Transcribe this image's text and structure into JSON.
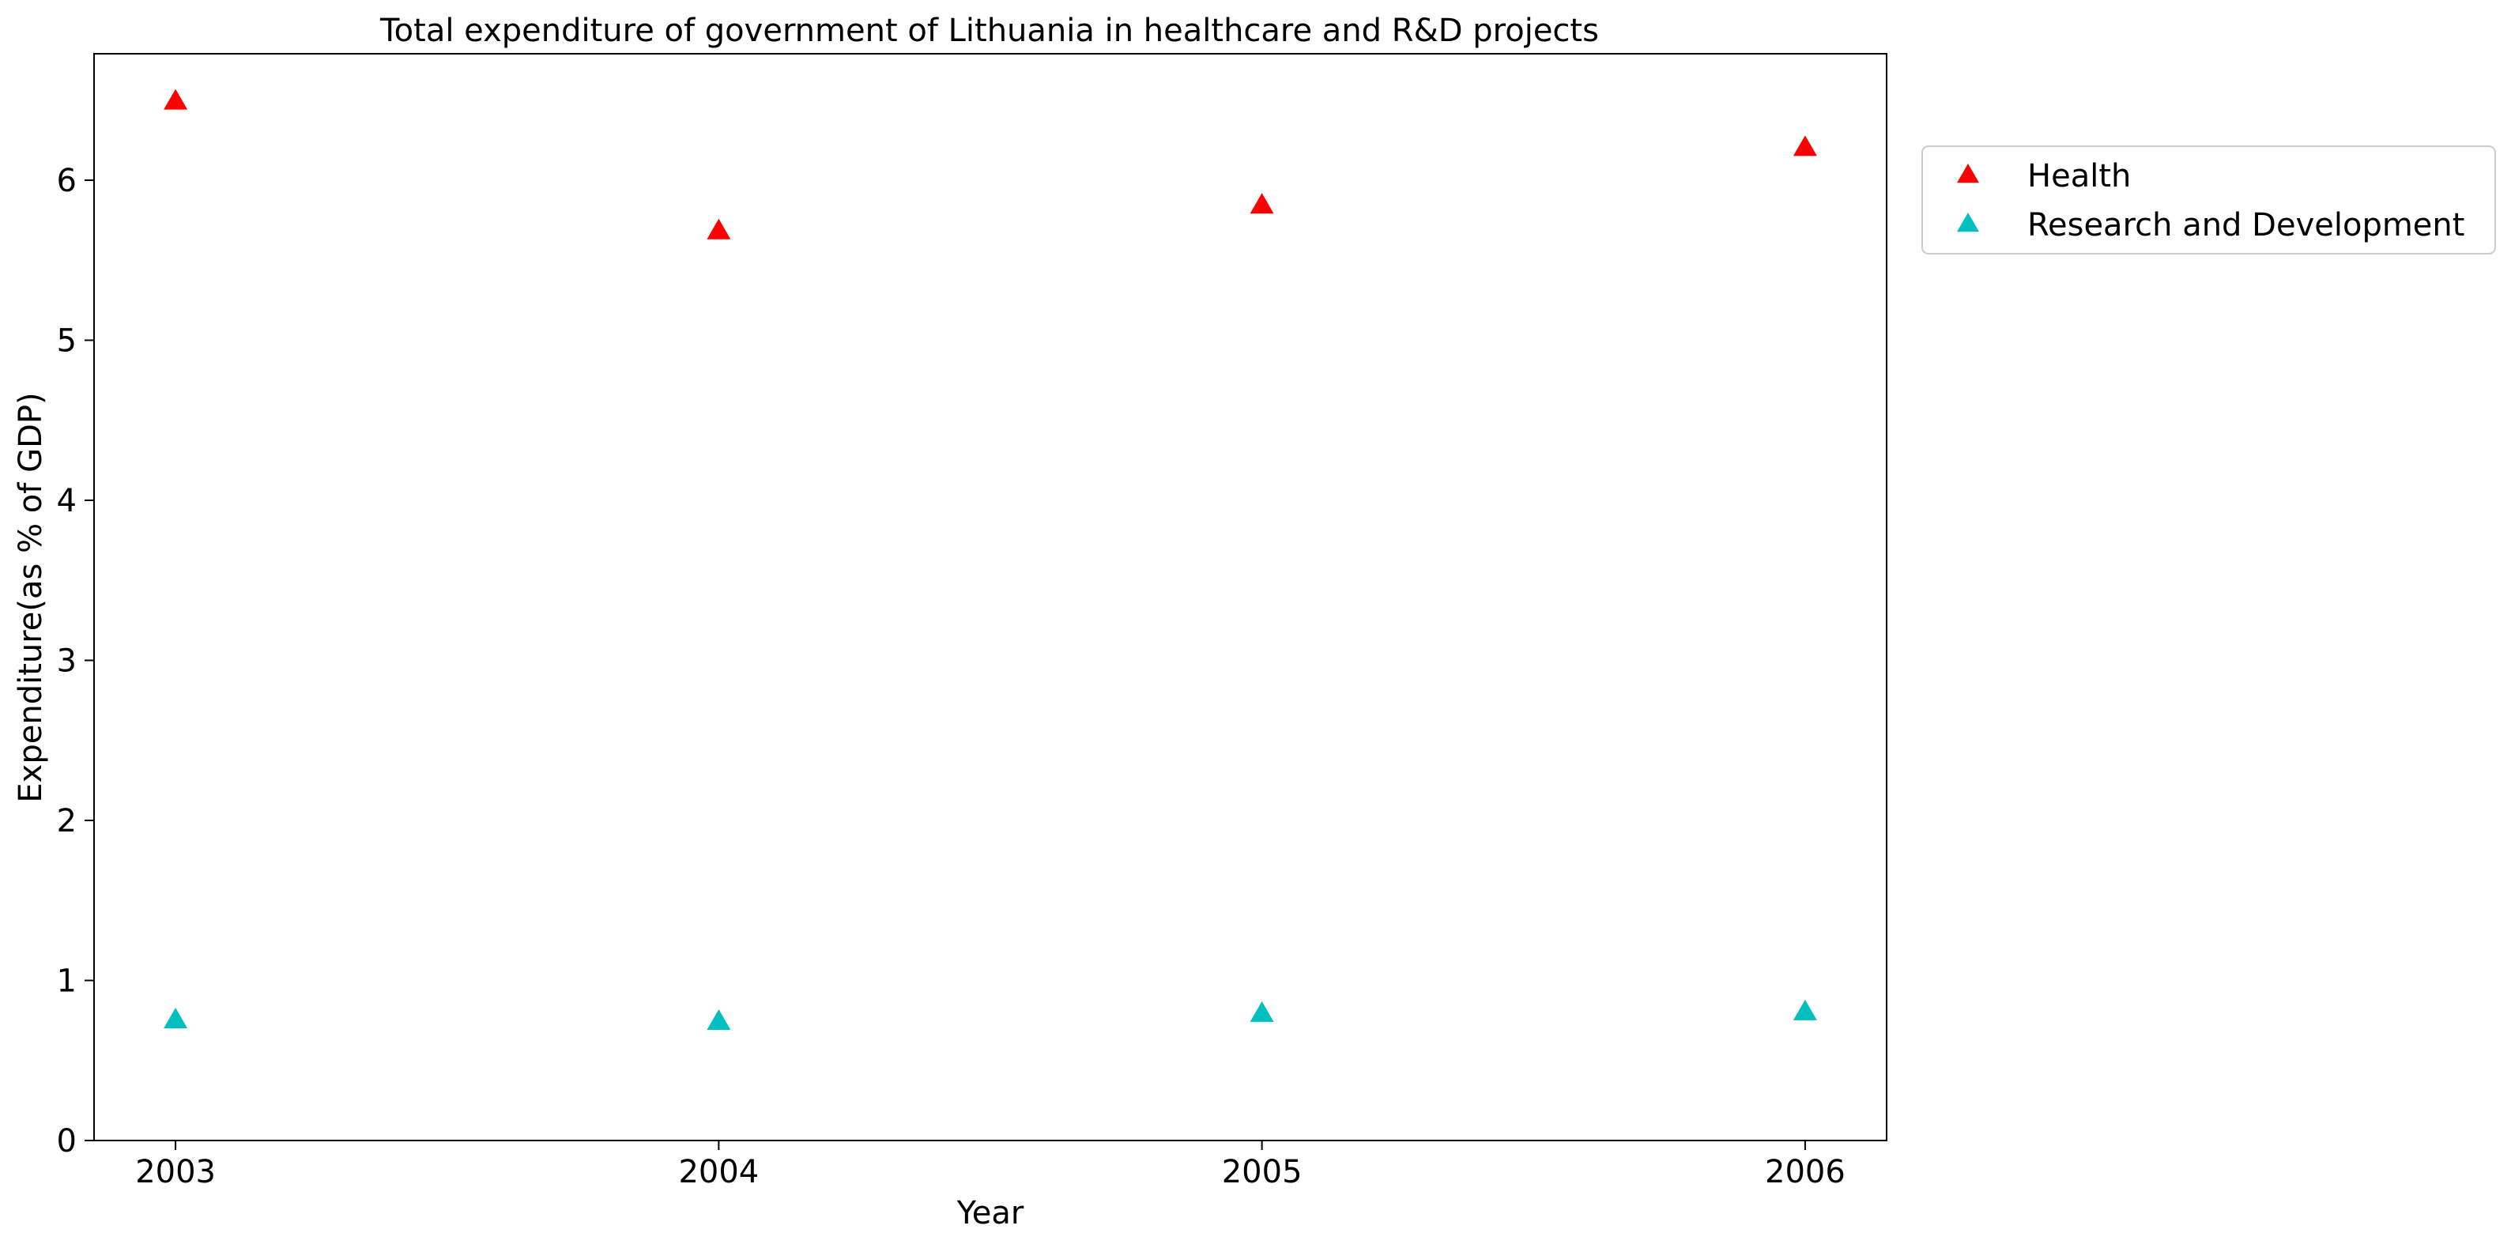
{
  "chart_data": {
    "type": "scatter",
    "title": "Total expenditure of government of Lithuania in healthcare and R&D projects",
    "xlabel": "Year",
    "ylabel": "Expenditure(as % of GDP)",
    "x": [
      2003,
      2004,
      2005,
      2006
    ],
    "x_tick_labels": [
      "2003",
      "2004",
      "2005",
      "2006"
    ],
    "y_ticks": [
      0,
      1,
      2,
      3,
      4,
      5,
      6
    ],
    "y_tick_labels": [
      "0",
      "1",
      "2",
      "3",
      "4",
      "5",
      "6"
    ],
    "xlim": [
      2002.85,
      2006.15
    ],
    "ylim": [
      0,
      6.79
    ],
    "marker": "triangle-up",
    "grid": false,
    "legend_position": "outside-right-top",
    "series": [
      {
        "name": "Health",
        "color": "#ff0000",
        "values": [
          6.49,
          5.68,
          5.84,
          6.2
        ]
      },
      {
        "name": "Research and Development",
        "color": "#00bfbf",
        "values": [
          0.75,
          0.74,
          0.79,
          0.8
        ]
      }
    ]
  }
}
